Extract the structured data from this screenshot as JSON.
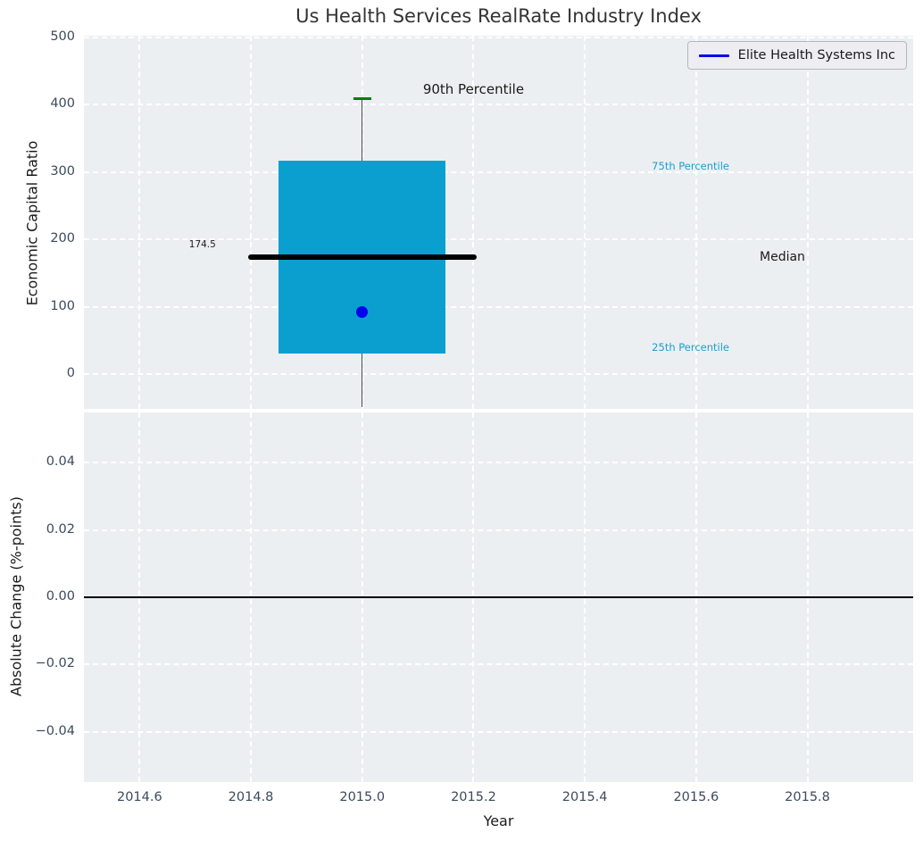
{
  "title": "Us Health Services RealRate Industry Index",
  "legend": {
    "label": "Elite Health Systems Inc",
    "line_color": "#0000ee"
  },
  "top_plot": {
    "ylabel": "Economic Capital Ratio"
  },
  "bottom_plot": {
    "ylabel": "Absolute Change (%-points)",
    "xlabel": "Year"
  },
  "colors": {
    "figure_bg": "#ffffff",
    "plot_bg": "#eceff1",
    "grid": "#ffffff",
    "box_fill": "#0a9fcf",
    "median_line": "#000000",
    "whisker": "#4a4a4a",
    "cap_90th": "#008000",
    "company_dot": "#0000ee",
    "zero_line": "#000000",
    "tick_label": "#3b4a5e",
    "percentile_label": "#199fd4",
    "text": "#1a1a1a"
  },
  "chart_data": [
    {
      "type": "box",
      "title": "Us Health Services RealRate Industry Index",
      "ylabel": "Economic Capital Ratio",
      "xlim": [
        2014.5,
        2015.99
      ],
      "ylim": [
        -51,
        502
      ],
      "yticks": [
        0,
        100,
        200,
        300,
        400,
        500
      ],
      "grid": true,
      "legend_entries": [
        "Elite Health Systems Inc"
      ],
      "legend_position": "upper right",
      "box": {
        "x": 2015.0,
        "box_halfwidth": 0.15,
        "median_halfwidth": 0.205,
        "p90": 409,
        "p75": 317,
        "median": 174.5,
        "p25": 31,
        "whisker_low_visible": -48
      },
      "company_point": {
        "name": "Elite Health Systems Inc",
        "x": 2015.0,
        "y": 92
      },
      "annotations": [
        {
          "text": "90th Percentile",
          "x": 2015.2,
          "y": 423,
          "color": "#1a1a1a",
          "size": 15
        },
        {
          "text": "75th Percentile",
          "x": 2015.59,
          "y": 309,
          "color": "#199fd4",
          "size": 11.5
        },
        {
          "text": "Median",
          "x": 2015.755,
          "y": 174,
          "color": "#1a1a1a",
          "size": 14
        },
        {
          "text": "25th Percentile",
          "x": 2015.59,
          "y": 40,
          "color": "#199fd4",
          "size": 11.5
        },
        {
          "text": "174.5",
          "x": 2014.713,
          "y": 192,
          "color": "#1a1a1a",
          "size": 10.5
        }
      ]
    },
    {
      "type": "line",
      "ylabel": "Absolute Change (%-points)",
      "xlabel": "Year",
      "xlim": [
        2014.5,
        2015.99
      ],
      "ylim": [
        -0.055,
        0.055
      ],
      "yticks": [
        0.04,
        0.02,
        0.0,
        -0.02,
        -0.04
      ],
      "ytick_labels": [
        "0.04",
        "0.02",
        "0.00",
        "−0.02",
        "−0.04"
      ],
      "xticks": [
        2014.6,
        2014.8,
        2015.0,
        2015.2,
        2015.4,
        2015.6,
        2015.8
      ],
      "xtick_labels": [
        "2014.6",
        "2014.8",
        "2015.0",
        "2015.2",
        "2015.4",
        "2015.6",
        "2015.8"
      ],
      "zero_line": 0.0,
      "grid": true,
      "series": []
    }
  ]
}
